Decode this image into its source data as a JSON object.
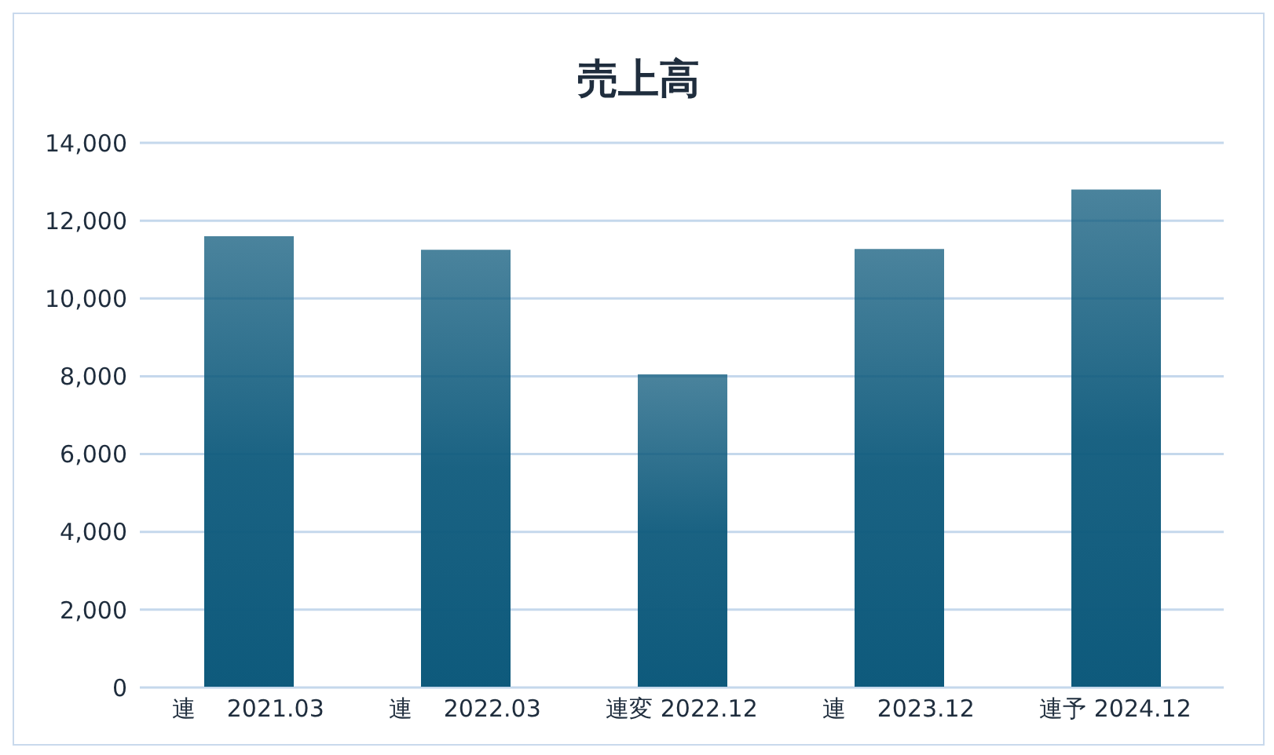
{
  "chart_data": {
    "type": "bar",
    "title": "売上高",
    "categories": [
      "連　 2021.03",
      "連　 2022.03",
      "連変 2022.12",
      "連　 2023.12",
      "連予 2024.12"
    ],
    "values": [
      11600,
      11250,
      8050,
      11270,
      12800
    ],
    "color": "#0e5a7c",
    "ylim": [
      0,
      14000
    ],
    "yticks": [
      0,
      {
        "value": 2000,
        "label": "2,000"
      },
      {
        "value": 4000,
        "label": "4,000"
      },
      {
        "value": 6000,
        "label": "6,000"
      },
      {
        "value": 8000,
        "label": "8,000"
      },
      {
        "value": 10000,
        "label": "10,000"
      },
      {
        "value": 12000,
        "label": "12,000"
      },
      {
        "value": 14000,
        "label": "14,000"
      }
    ],
    "grid": "y"
  }
}
